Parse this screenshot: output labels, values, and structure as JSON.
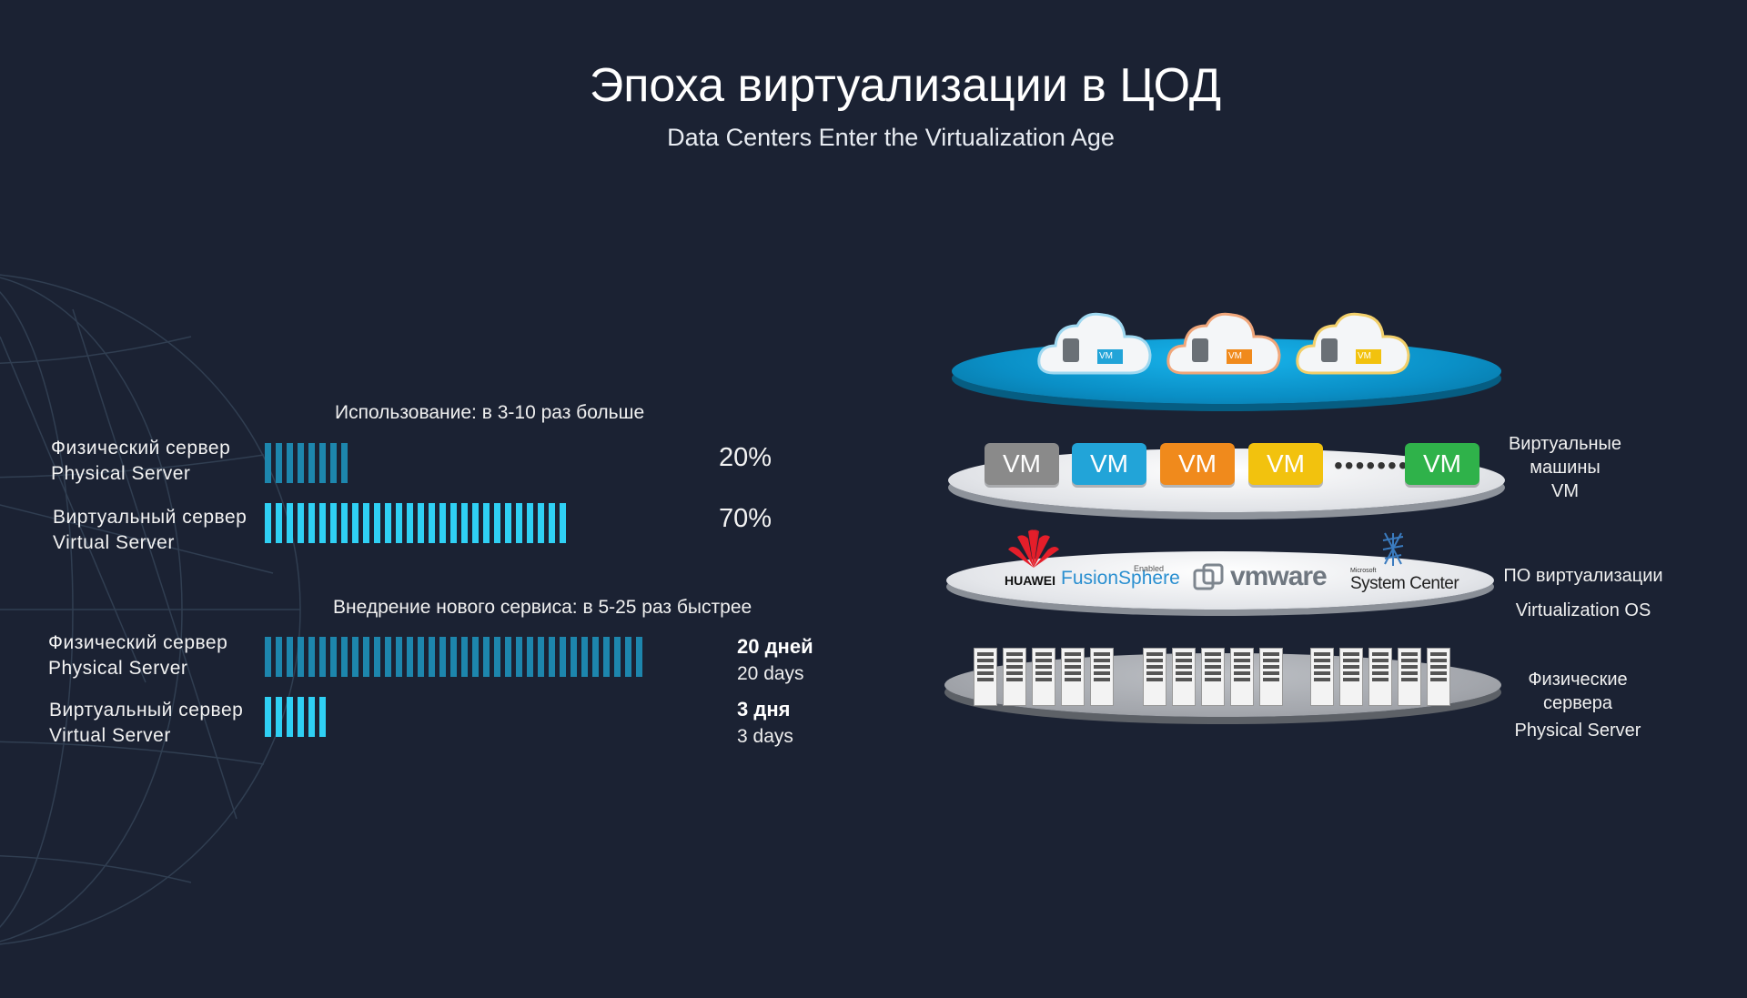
{
  "header": {
    "title": "Эпоха виртуализации в ЦОД",
    "subtitle": "Data Centers Enter the Virtualization Age"
  },
  "utilization": {
    "heading": "Использование:  в 3-10 раз больше",
    "rows": [
      {
        "label_ru": "Физический сервер",
        "label_en": "Physical Server",
        "value": "20%",
        "percent": 20
      },
      {
        "label_ru": "Виртуальный сервер",
        "label_en": "Virtual Server",
        "value": "70%",
        "percent": 70
      }
    ]
  },
  "deployment": {
    "heading": "Внедрение нового сервиса: в 5-25 раз быстрее",
    "rows": [
      {
        "label_ru": "Физический сервер",
        "label_en": "Physical Server",
        "value_ru": "20 дней",
        "value_en": "20 days",
        "days": 20
      },
      {
        "label_ru": "Виртуальный сервер",
        "label_en": "Virtual Server",
        "value_ru": "3 дня",
        "value_en": "3 days",
        "days": 3
      }
    ]
  },
  "stack": {
    "cloud_badge": "VM",
    "vm_labels": [
      "VM",
      "VM",
      "VM",
      "VM",
      "VM"
    ],
    "vm_colors": [
      "#8a8a8a",
      "#22a4d8",
      "#f08a1c",
      "#f2c20e",
      "#2fb24a"
    ],
    "vendors": {
      "huawei": "HUAWEI",
      "fusion": "FusionSphere",
      "fusion_tag": "Enabled",
      "vmware": "vmware",
      "ms_tag": "Microsoft",
      "system_center": "System Center"
    },
    "labels": {
      "vm_ru_1": "Виртуальные",
      "vm_ru_2": "машины",
      "vm_en": "VM",
      "os_ru": "ПО виртуализации",
      "os_en": "Virtualization OS",
      "phys_ru_1": "Физические",
      "phys_ru_2": "сервера",
      "phys_en": "Physical Server"
    }
  },
  "colors": {
    "background": "#1b2233",
    "bar_dim": "#1d86ad",
    "bar_bright": "#2fd0f4",
    "platform_blue": "#0a97cf"
  }
}
